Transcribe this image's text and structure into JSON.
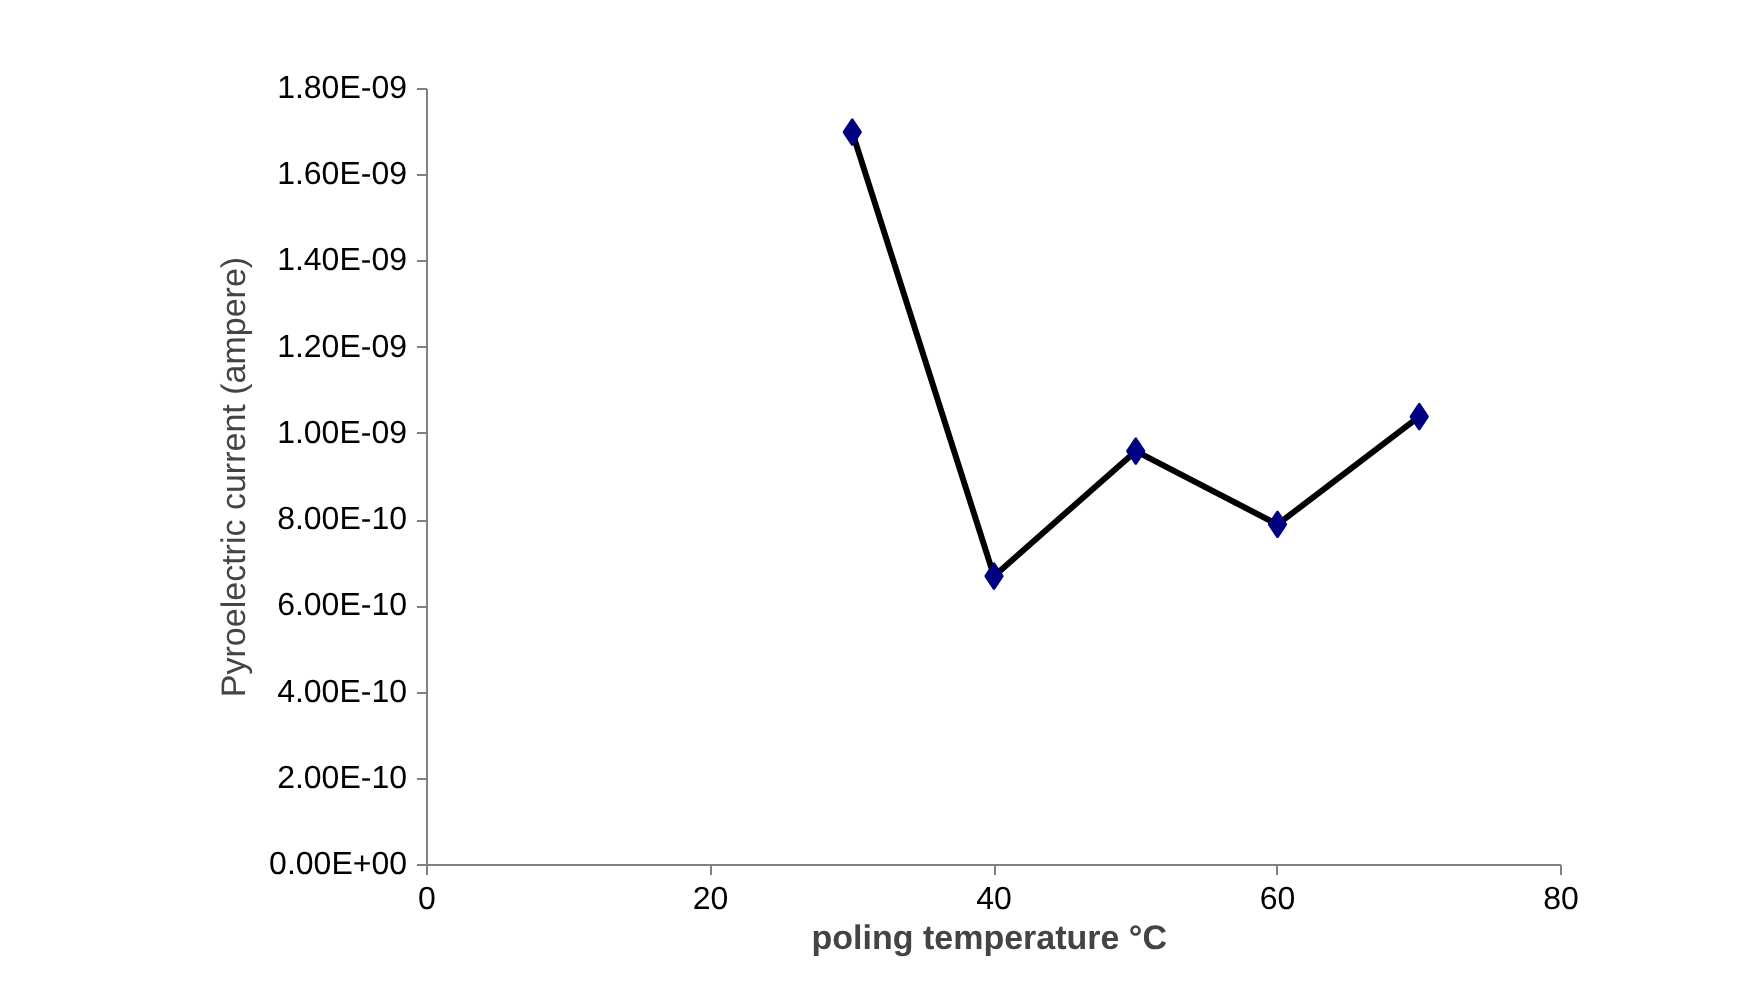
{
  "chart_data": {
    "type": "line",
    "xlabel": "poling temperature  °C",
    "ylabel": "Pyroelectric current (ampere)",
    "x": [
      30,
      40,
      50,
      60,
      70
    ],
    "series": [
      {
        "color": "#000000",
        "colors": [
          "#000080",
          "#000080",
          "#000080",
          "#000080",
          "#000080"
        ],
        "values": [
          1.7e-09,
          6.7e-10,
          9.6e-10,
          7.9e-10,
          1.04e-09
        ]
      }
    ],
    "xlim": [
      0,
      80
    ],
    "xticks": [
      0,
      20,
      40,
      60,
      80
    ],
    "ylim": [
      0,
      1.8e-09
    ],
    "yticks": [
      {
        "value": 0,
        "label": "0.00E+00"
      },
      {
        "value": 2e-10,
        "label": "2.00E-10"
      },
      {
        "value": 4e-10,
        "label": "4.00E-10"
      },
      {
        "value": 6e-10,
        "label": "6.00E-10"
      },
      {
        "value": 8e-10,
        "label": "8.00E-10"
      },
      {
        "value": 1e-09,
        "label": "1.00E-09"
      },
      {
        "value": 1.2e-09,
        "label": "1.20E-09"
      },
      {
        "value": 1.4e-09,
        "label": "1.40E-09"
      },
      {
        "value": 1.6e-09,
        "label": "1.60E-09"
      },
      {
        "value": 1.8e-09,
        "label": "1.80E-09"
      }
    ],
    "grid": false,
    "marker": "diamond",
    "line_style": "solid"
  }
}
